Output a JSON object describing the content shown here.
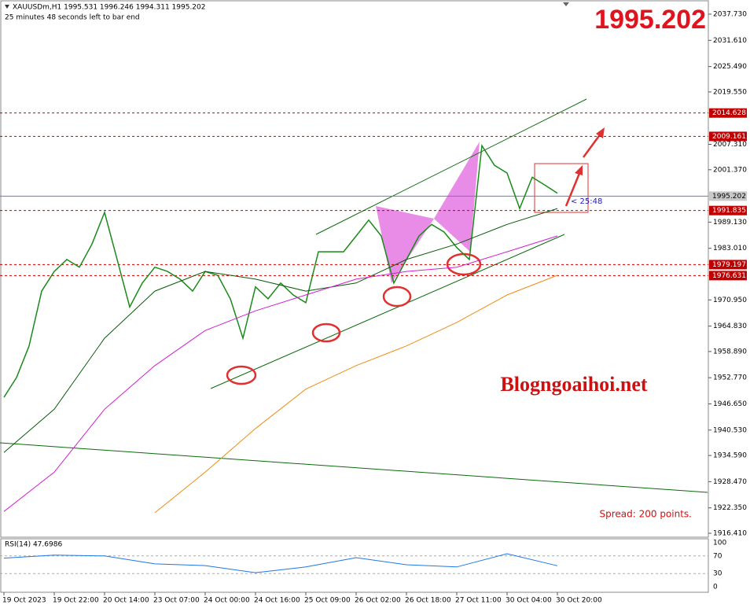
{
  "header": {
    "symbol_line": "XAUUSDm,H1  1995.531 1996.246 1994.311 1995.202",
    "timer_line": "25 minutes 48 seconds left to bar end",
    "big_price": "1995.202",
    "watermark": "Blogngoaihoi.net",
    "spread": "Spread: 200 points.",
    "countdown": "< 25:48"
  },
  "chart_data": [
    {
      "type": "line",
      "xlim": [
        -1.25,
        223.75
      ],
      "ylim": [
        1915.49,
        2041.04
      ],
      "yticks": [
        {
          "value": 2037.73,
          "label": "2037.730"
        },
        {
          "value": 2031.61,
          "label": "2031.610"
        },
        {
          "value": 2025.49,
          "label": "2025.490"
        },
        {
          "value": 2019.55,
          "label": "2019.550"
        },
        {
          "value": 2007.31,
          "label": "2007.310"
        },
        {
          "value": 2001.37,
          "label": "2001.370"
        },
        {
          "value": 1989.13,
          "label": "1989.130"
        },
        {
          "value": 1983.01,
          "label": "1983.010"
        },
        {
          "value": 1970.95,
          "label": "1970.950"
        },
        {
          "value": 1964.83,
          "label": "1964.830"
        },
        {
          "value": 1958.89,
          "label": "1958.890"
        },
        {
          "value": 1952.77,
          "label": "1952.770"
        },
        {
          "value": 1946.65,
          "label": "1946.650"
        },
        {
          "value": 1940.53,
          "label": "1940.530"
        },
        {
          "value": 1934.59,
          "label": "1934.590"
        },
        {
          "value": 1928.47,
          "label": "1928.470"
        },
        {
          "value": 1922.35,
          "label": "1922.350"
        },
        {
          "value": 1916.41,
          "label": "1916.410"
        }
      ],
      "xticks": [
        {
          "value": 0,
          "label": "19 Oct 2023"
        },
        {
          "value": 16,
          "label": "19 Oct 22:00"
        },
        {
          "value": 32,
          "label": "20 Oct 14:00"
        },
        {
          "value": 48,
          "label": "23 Oct 07:00"
        },
        {
          "value": 64,
          "label": "24 Oct 00:00"
        },
        {
          "value": 80,
          "label": "24 Oct 16:00"
        },
        {
          "value": 96,
          "label": "25 Oct 09:00"
        },
        {
          "value": 112,
          "label": "26 Oct 02:00"
        },
        {
          "value": 128,
          "label": "26 Oct 18:00"
        },
        {
          "value": 144,
          "label": "27 Oct 11:00"
        },
        {
          "value": 160,
          "label": "30 Oct 04:00"
        },
        {
          "value": 176,
          "label": "30 Oct 20:00"
        }
      ],
      "levels": [
        {
          "value": 2014.628,
          "color": "#c00000"
        },
        {
          "value": 2009.161,
          "color": "#c00000"
        },
        {
          "value": 1995.202,
          "color": "#5a7fd0"
        },
        {
          "value": 1991.835,
          "color": "#c00000"
        },
        {
          "value": 1979.197,
          "color": "#c00000"
        },
        {
          "value": 1976.631,
          "color": "#c00000"
        }
      ],
      "series": [
        {
          "color": "#1a8a1a",
          "x": [
            0,
            4,
            8,
            12,
            16,
            20,
            24,
            28,
            32,
            36,
            40,
            44,
            48,
            52,
            56,
            60,
            64,
            68,
            72,
            76,
            80,
            84,
            88,
            92,
            96,
            100,
            104,
            108,
            112,
            116,
            120,
            124,
            128,
            132,
            136,
            140,
            144,
            148,
            152,
            156,
            160,
            164,
            168,
            172,
            176
          ],
          "values": [
            1948.2,
            1952.8,
            1960.2,
            1973.0,
            1977.6,
            1980.4,
            1978.6,
            1984.0,
            1991.4,
            1980.4,
            1969.3,
            1974.9,
            1978.6,
            1977.6,
            1975.8,
            1973.0,
            1977.6,
            1976.7,
            1971.2,
            1962.0,
            1974.0,
            1971.2,
            1974.9,
            1972.1,
            1970.3,
            1982.2,
            1982.2,
            1982.2,
            1985.9,
            1989.6,
            1985.9,
            1974.9,
            1980.4,
            1985.9,
            1988.6,
            1986.8,
            1983.2,
            1980.4,
            2007.0,
            2002.4,
            2000.6,
            1992.3,
            1999.6,
            1997.8,
            1995.9
          ]
        },
        {
          "color": "#0a5a0a",
          "x": [
            0,
            16,
            32,
            48,
            64,
            80,
            96,
            112,
            128,
            144,
            160,
            176
          ],
          "values": [
            1935.3,
            1945.4,
            1962.0,
            1973.0,
            1977.6,
            1975.8,
            1973.0,
            1974.9,
            1980.4,
            1984.0,
            1988.6,
            1992.3
          ]
        },
        {
          "color": "#d21ed2",
          "x": [
            0,
            16,
            32,
            48,
            64,
            80,
            96,
            112,
            128,
            144,
            160,
            176
          ],
          "values": [
            1921.5,
            1930.7,
            1945.4,
            1955.6,
            1963.8,
            1968.4,
            1972.1,
            1975.8,
            1977.6,
            1978.6,
            1982.2,
            1985.9
          ]
        },
        {
          "color": "#f08c14",
          "x": [
            0,
            16,
            32,
            48,
            64,
            80,
            96,
            112,
            128,
            144,
            160,
            176
          ],
          "values": [
            null,
            null,
            null,
            1921.2,
            1930.7,
            1940.9,
            1950.1,
            1955.6,
            1960.2,
            1965.7,
            1972.1,
            1976.7
          ]
        }
      ]
    },
    {
      "type": "line",
      "title": "RSI(14) 47.6986",
      "ylim": [
        0,
        100
      ],
      "yticks": [
        100,
        70,
        30,
        0
      ],
      "color": "#1e78e6",
      "x": [
        0,
        16,
        32,
        48,
        64,
        80,
        96,
        112,
        128,
        144,
        160,
        176
      ],
      "values": [
        65,
        72,
        70,
        52,
        48,
        32,
        45,
        66,
        50,
        45,
        75,
        47.7
      ]
    }
  ]
}
